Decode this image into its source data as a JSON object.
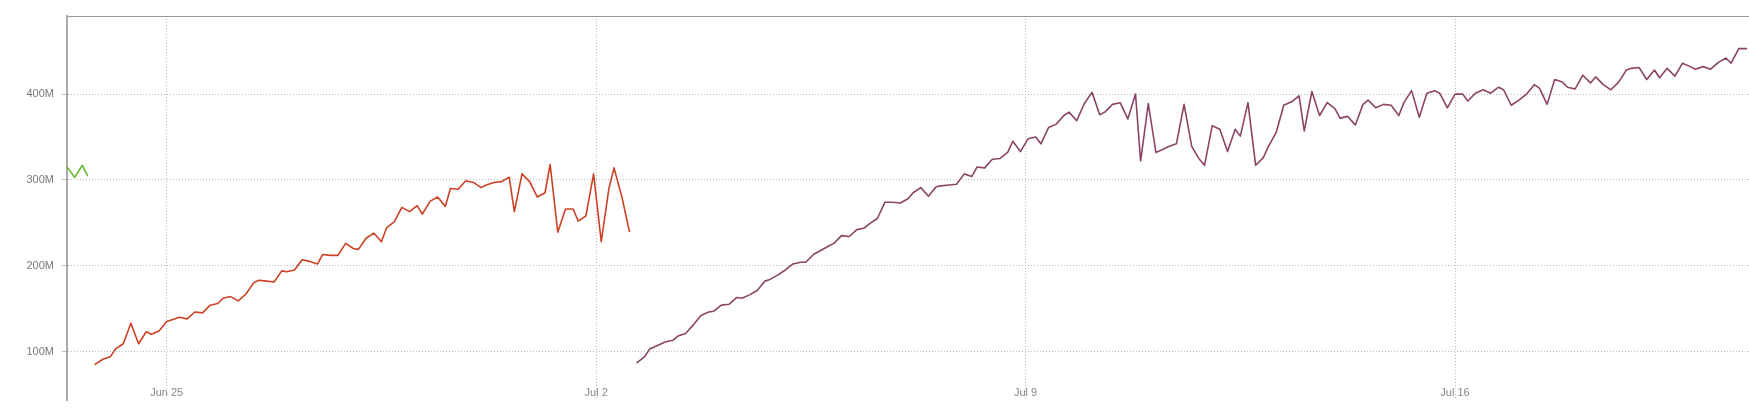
{
  "chart_data": {
    "type": "line",
    "xlim": [
      "--06-23T09:00",
      "--07-20T19:00"
    ],
    "ylim": [
      43,
      491
    ],
    "xticks": [
      {
        "value": "--06-25",
        "label": "Jun 25"
      },
      {
        "value": "--07-02",
        "label": "Jul 2"
      },
      {
        "value": "--07-09",
        "label": "Jul 9"
      },
      {
        "value": "--07-16",
        "label": "Jul 16"
      }
    ],
    "yticks": [
      {
        "value": 100,
        "label": "100M"
      },
      {
        "value": 200,
        "label": "200M"
      },
      {
        "value": 300,
        "label": "300M"
      },
      {
        "value": 400,
        "label": "400M"
      }
    ],
    "grid": true,
    "legend": false,
    "marker": "none",
    "line_style": "solid",
    "series": [
      {
        "color": "#66bb33",
        "x": [
          "--06-23T09:00",
          "--06-23T12:00",
          "--06-23T15:00",
          "--06-23T17:00"
        ],
        "values": [
          315,
          303,
          317,
          305
        ]
      },
      {
        "color": "#cc4125",
        "x": [
          "--06-23T20:00",
          "--06-23T23:00",
          "--06-24T02:00",
          "--06-24T04:00",
          "--06-24T07:00",
          "--06-24T10:00",
          "--06-24T13:00",
          "--06-24T16:00",
          "--06-24T18:00",
          "--06-24T21:00",
          "--06-25T00:00",
          "--06-25T03:00",
          "--06-25T05:00",
          "--06-25T08:00",
          "--06-25T11:00",
          "--06-25T14:00",
          "--06-25T17:00",
          "--06-25T20:00",
          "--06-25T22:00",
          "--06-26T01:00",
          "--06-26T04:00",
          "--06-26T07:00",
          "--06-26T10:00",
          "--06-26T12:00",
          "--06-26T15:00",
          "--06-26T18:00",
          "--06-26T21:00",
          "--06-26T23:00",
          "--06-27T02:00",
          "--06-27T05:00",
          "--06-27T08:00",
          "--06-27T11:00",
          "--06-27T13:00",
          "--06-27T16:00",
          "--06-27T19:00",
          "--06-27T22:00",
          "--06-28T01:00",
          "--06-28T03:00",
          "--06-28T06:00",
          "--06-28T09:00",
          "--06-28T12:00",
          "--06-28T14:00",
          "--06-28T17:00",
          "--06-28T20:00",
          "--06-28T23:00",
          "--06-29T02:00",
          "--06-29T04:00",
          "--06-29T07:00",
          "--06-29T10:00",
          "--06-29T13:00",
          "--06-29T15:00",
          "--06-29T18:00",
          "--06-29T21:00",
          "--06-30T00:00",
          "--06-30T03:00",
          "--06-30T05:00",
          "--06-30T08:00",
          "--06-30T11:00",
          "--06-30T14:00",
          "--06-30T16:00",
          "--06-30T19:00",
          "--06-30T22:00",
          "--07-01T01:00",
          "--07-01T04:00",
          "--07-01T06:00",
          "--07-01T09:00",
          "--07-01T12:00",
          "--07-01T15:00",
          "--07-01T17:00",
          "--07-01T20:00",
          "--07-01T23:00",
          "--07-02T02:00",
          "--07-02T05:00",
          "--07-02T07:00",
          "--07-02T10:00",
          "--07-02T13:00"
        ],
        "values": [
          85,
          91,
          94,
          103,
          109,
          133,
          109,
          123,
          120,
          124,
          135,
          138,
          140,
          138,
          146,
          145,
          154,
          156,
          162,
          164,
          159,
          167,
          180,
          183,
          182,
          181,
          194,
          193,
          195,
          207,
          205,
          202,
          213,
          212,
          212,
          226,
          220,
          219,
          232,
          238,
          228,
          244,
          251,
          268,
          263,
          270,
          260,
          275,
          280,
          269,
          290,
          289,
          299,
          297,
          291,
          294,
          297,
          298,
          303,
          263,
          307,
          298,
          280,
          285,
          318,
          239,
          266,
          266,
          252,
          258,
          307,
          228,
          290,
          314,
          281,
          240
        ]
      },
      {
        "color": "#8b4466",
        "x": [
          "--07-02T16:00",
          "--07-02T19:00",
          "--07-02T21:00",
          "--07-03T00:00",
          "--07-03T03:00",
          "--07-03T06:00",
          "--07-03T08:00",
          "--07-03T11:00",
          "--07-03T14:00",
          "--07-03T17:00",
          "--07-03T20:00",
          "--07-03T22:00",
          "--07-04T01:00",
          "--07-04T04:00",
          "--07-04T07:00",
          "--07-04T09:00",
          "--07-04T12:00",
          "--07-04T15:00",
          "--07-04T18:00",
          "--07-04T20:00",
          "--07-04T23:00",
          "--07-05T02:00",
          "--07-05T05:00",
          "--07-05T08:00",
          "--07-05T10:00",
          "--07-05T13:00",
          "--07-05T16:00",
          "--07-05T19:00",
          "--07-05T21:00",
          "--07-06T00:00",
          "--07-06T03:00",
          "--07-06T06:00",
          "--07-06T09:00",
          "--07-06T11:00",
          "--07-06T14:00",
          "--07-06T17:00",
          "--07-06T20:00",
          "--07-06T23:00",
          "--07-07T02:00",
          "--07-07T04:00",
          "--07-07T07:00",
          "--07-07T10:00",
          "--07-07T13:00",
          "--07-07T15:00",
          "--07-07T18:00",
          "--07-07T21:00",
          "--07-08T00:00",
          "--07-08T03:00",
          "--07-08T05:00",
          "--07-08T08:00",
          "--07-08T11:00",
          "--07-08T14:00",
          "--07-08T17:00",
          "--07-08T19:00",
          "--07-08T22:00",
          "--07-09T01:00",
          "--07-09T04:00",
          "--07-09T06:00",
          "--07-09T09:00",
          "--07-09T12:00",
          "--07-09T15:00",
          "--07-09T17:00",
          "--07-09T20:00",
          "--07-09T23:00",
          "--07-10T02:00",
          "--07-10T05:00",
          "--07-10T07:00",
          "--07-10T10:00",
          "--07-10T13:00",
          "--07-10T16:00",
          "--07-10T19:00",
          "--07-10T21:00",
          "--07-11T00:00",
          "--07-11T03:00",
          "--07-11T06:00",
          "--07-11T08:00",
          "--07-11T11:00",
          "--07-11T14:00",
          "--07-11T17:00",
          "--07-11T20:00",
          "--07-11T22:00",
          "--07-12T01:00",
          "--07-12T04:00",
          "--07-12T07:00",
          "--07-12T10:00",
          "--07-12T12:00",
          "--07-12T15:00",
          "--07-12T18:00",
          "--07-12T21:00",
          "--07-12T23:00",
          "--07-13T02:00",
          "--07-13T05:00",
          "--07-13T08:00",
          "--07-13T11:00",
          "--07-13T13:00",
          "--07-13T16:00",
          "--07-13T19:00",
          "--07-13T22:00",
          "--07-14T01:00",
          "--07-14T03:00",
          "--07-14T06:00",
          "--07-14T09:00",
          "--07-14T12:00",
          "--07-14T14:00",
          "--07-14T17:00",
          "--07-14T20:00",
          "--07-14T23:00",
          "--07-15T02:00",
          "--07-15T04:00",
          "--07-15T07:00",
          "--07-15T10:00",
          "--07-15T13:00",
          "--07-15T16:00",
          "--07-15T18:00",
          "--07-15T21:00",
          "--07-16T00:00",
          "--07-16T03:00",
          "--07-16T05:00",
          "--07-16T08:00",
          "--07-16T11:00",
          "--07-16T14:00",
          "--07-16T17:00",
          "--07-16T19:00",
          "--07-16T22:00",
          "--07-17T01:00",
          "--07-17T04:00",
          "--07-17T07:00",
          "--07-17T09:00",
          "--07-17T12:00",
          "--07-17T15:00",
          "--07-17T18:00",
          "--07-17T20:00",
          "--07-17T23:00",
          "--07-18T02:00",
          "--07-18T05:00",
          "--07-18T07:00",
          "--07-18T10:00",
          "--07-18T13:00",
          "--07-18T16:00",
          "--07-18T19:00",
          "--07-18T21:00",
          "--07-19T00:00",
          "--07-19T03:00",
          "--07-19T06:00",
          "--07-19T08:00",
          "--07-19T11:00",
          "--07-19T14:00",
          "--07-19T17:00",
          "--07-19T20:00",
          "--07-19T22:00",
          "--07-20T01:00",
          "--07-20T04:00",
          "--07-20T07:00",
          "--07-20T10:00",
          "--07-20T12:00",
          "--07-20T15:00",
          "--07-20T18:00"
        ],
        "values": [
          87,
          94,
          103,
          107,
          111,
          113,
          118,
          121,
          131,
          142,
          146,
          147,
          154,
          155,
          163,
          162,
          166,
          171,
          182,
          184,
          189,
          195,
          202,
          204,
          204,
          213,
          218,
          223,
          226,
          235,
          234,
          242,
          244,
          249,
          255,
          274,
          274,
          273,
          278,
          285,
          291,
          281,
          292,
          293,
          294,
          295,
          307,
          304,
          315,
          314,
          324,
          325,
          332,
          345,
          333,
          348,
          350,
          342,
          361,
          365,
          375,
          379,
          369,
          389,
          402,
          376,
          379,
          388,
          390,
          371,
          400,
          322,
          389,
          332,
          336,
          339,
          342,
          388,
          339,
          324,
          317,
          363,
          359,
          333,
          359,
          351,
          390,
          317,
          326,
          339,
          355,
          387,
          391,
          398,
          357,
          403,
          375,
          390,
          383,
          372,
          374,
          364,
          388,
          393,
          384,
          388,
          387,
          375,
          390,
          404,
          373,
          401,
          404,
          401,
          384,
          400,
          400,
          392,
          401,
          405,
          401,
          408,
          405,
          387,
          393,
          400,
          411,
          407,
          388,
          417,
          414,
          408,
          406,
          422,
          413,
          420,
          411,
          405,
          414,
          428,
          430,
          431,
          417,
          428,
          419,
          430,
          421,
          436,
          432,
          429,
          432,
          429,
          437,
          442,
          436,
          453,
          453
        ]
      }
    ]
  }
}
